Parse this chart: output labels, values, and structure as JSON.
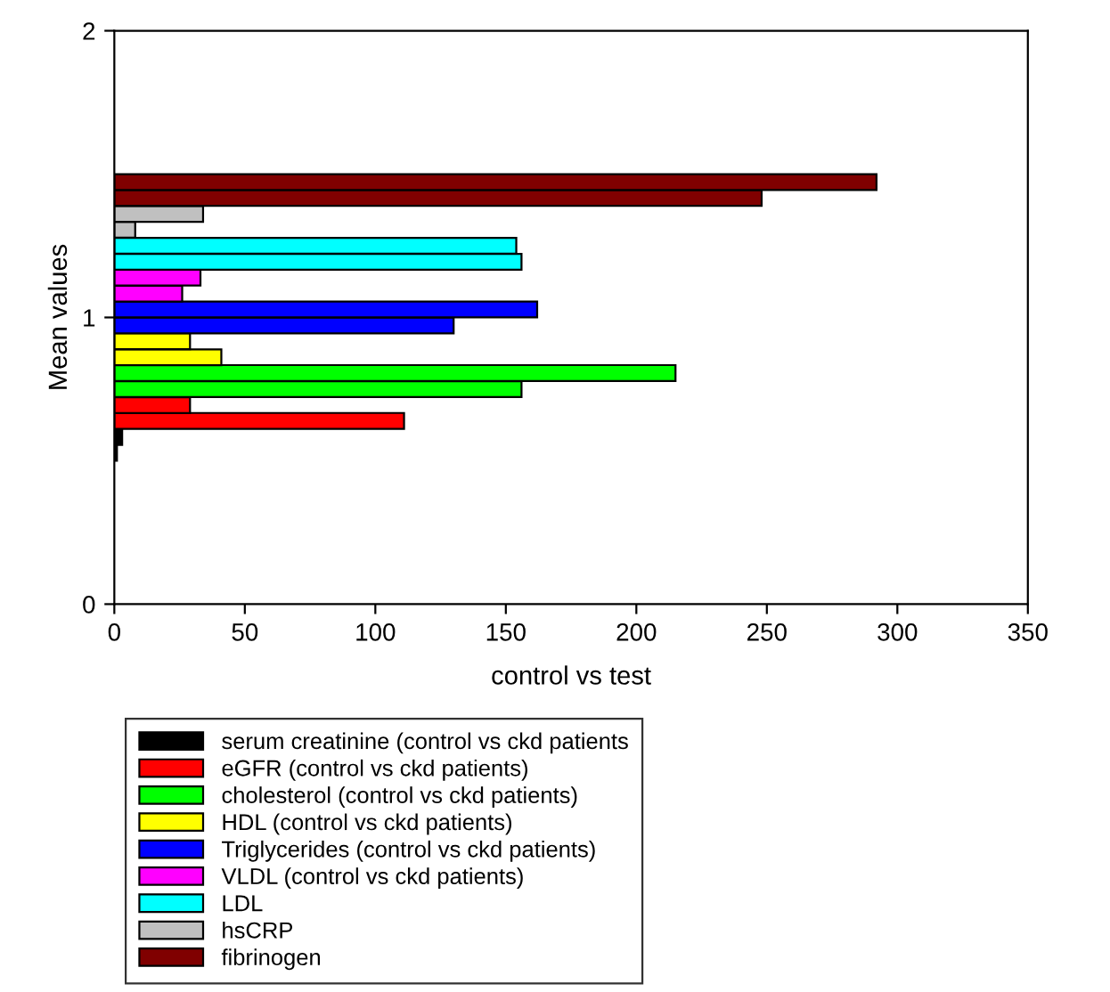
{
  "chart_data": {
    "type": "bar",
    "orientation": "horizontal",
    "xlabel": "control vs test",
    "ylabel": "Mean values",
    "xlim": [
      0,
      350
    ],
    "xticks": [
      0,
      50,
      100,
      150,
      200,
      250,
      300,
      350
    ],
    "ylim": [
      0,
      2
    ],
    "yticks": [
      0,
      1,
      2
    ],
    "grid": false,
    "legend": "bottom",
    "series": [
      {
        "name": "serum creatinine (control vs ckd patients",
        "color": "#000000",
        "x": [
          0.528,
          0.583
        ],
        "values": [
          1,
          3
        ]
      },
      {
        "name": "eGFR (control vs ckd patients)",
        "color": "#ff0000",
        "x": [
          0.639,
          0.694
        ],
        "values": [
          111,
          29
        ]
      },
      {
        "name": "cholesterol (control vs ckd patients)",
        "color": "#00ff00",
        "x": [
          0.75,
          0.806
        ],
        "values": [
          156,
          215
        ]
      },
      {
        "name": "HDL (control vs ckd patients)",
        "color": "#ffff00",
        "x": [
          0.861,
          0.917
        ],
        "values": [
          41,
          29
        ]
      },
      {
        "name": "Triglycerides (control vs ckd patients)",
        "color": "#0000ff",
        "x": [
          0.972,
          1.028
        ],
        "values": [
          130,
          162
        ]
      },
      {
        "name": "VLDL (control vs ckd patients)",
        "color": "#ff00ff",
        "x": [
          1.083,
          1.139
        ],
        "values": [
          26,
          33
        ]
      },
      {
        "name": "LDL",
        "color": "#00ffff",
        "x": [
          1.194,
          1.25
        ],
        "values": [
          156,
          154
        ]
      },
      {
        "name": "hsCRP",
        "color": "#c0c0c0",
        "x": [
          1.306,
          1.361
        ],
        "values": [
          8,
          34
        ]
      },
      {
        "name": "fibrinogen",
        "color": "#800000",
        "x": [
          1.417,
          1.472
        ],
        "values": [
          248,
          292
        ]
      }
    ]
  }
}
